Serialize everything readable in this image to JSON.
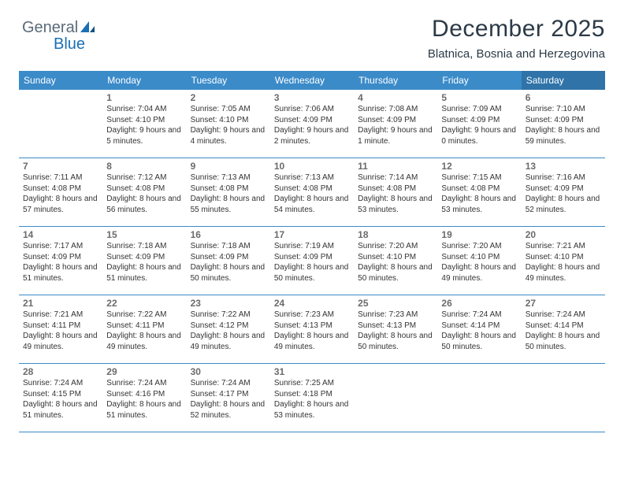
{
  "logo": {
    "text1": "General",
    "text2": "Blue"
  },
  "title": "December 2025",
  "subtitle": "Blatnica, Bosnia and Herzegovina",
  "colors": {
    "header_bg": "#3b8bc9",
    "header_sat_bg": "#2f73a8",
    "week_divider": "#3b8bc9",
    "daynum_color": "#6b6b6b",
    "text_color": "#333333"
  },
  "headers": [
    "Sunday",
    "Monday",
    "Tuesday",
    "Wednesday",
    "Thursday",
    "Friday",
    "Saturday"
  ],
  "weeks": [
    [
      {
        "n": "",
        "r": "",
        "s": "",
        "d": ""
      },
      {
        "n": "1",
        "r": "Sunrise: 7:04 AM",
        "s": "Sunset: 4:10 PM",
        "d": "Daylight: 9 hours and 5 minutes."
      },
      {
        "n": "2",
        "r": "Sunrise: 7:05 AM",
        "s": "Sunset: 4:10 PM",
        "d": "Daylight: 9 hours and 4 minutes."
      },
      {
        "n": "3",
        "r": "Sunrise: 7:06 AM",
        "s": "Sunset: 4:09 PM",
        "d": "Daylight: 9 hours and 2 minutes."
      },
      {
        "n": "4",
        "r": "Sunrise: 7:08 AM",
        "s": "Sunset: 4:09 PM",
        "d": "Daylight: 9 hours and 1 minute."
      },
      {
        "n": "5",
        "r": "Sunrise: 7:09 AM",
        "s": "Sunset: 4:09 PM",
        "d": "Daylight: 9 hours and 0 minutes."
      },
      {
        "n": "6",
        "r": "Sunrise: 7:10 AM",
        "s": "Sunset: 4:09 PM",
        "d": "Daylight: 8 hours and 59 minutes."
      }
    ],
    [
      {
        "n": "7",
        "r": "Sunrise: 7:11 AM",
        "s": "Sunset: 4:08 PM",
        "d": "Daylight: 8 hours and 57 minutes."
      },
      {
        "n": "8",
        "r": "Sunrise: 7:12 AM",
        "s": "Sunset: 4:08 PM",
        "d": "Daylight: 8 hours and 56 minutes."
      },
      {
        "n": "9",
        "r": "Sunrise: 7:13 AM",
        "s": "Sunset: 4:08 PM",
        "d": "Daylight: 8 hours and 55 minutes."
      },
      {
        "n": "10",
        "r": "Sunrise: 7:13 AM",
        "s": "Sunset: 4:08 PM",
        "d": "Daylight: 8 hours and 54 minutes."
      },
      {
        "n": "11",
        "r": "Sunrise: 7:14 AM",
        "s": "Sunset: 4:08 PM",
        "d": "Daylight: 8 hours and 53 minutes."
      },
      {
        "n": "12",
        "r": "Sunrise: 7:15 AM",
        "s": "Sunset: 4:08 PM",
        "d": "Daylight: 8 hours and 53 minutes."
      },
      {
        "n": "13",
        "r": "Sunrise: 7:16 AM",
        "s": "Sunset: 4:09 PM",
        "d": "Daylight: 8 hours and 52 minutes."
      }
    ],
    [
      {
        "n": "14",
        "r": "Sunrise: 7:17 AM",
        "s": "Sunset: 4:09 PM",
        "d": "Daylight: 8 hours and 51 minutes."
      },
      {
        "n": "15",
        "r": "Sunrise: 7:18 AM",
        "s": "Sunset: 4:09 PM",
        "d": "Daylight: 8 hours and 51 minutes."
      },
      {
        "n": "16",
        "r": "Sunrise: 7:18 AM",
        "s": "Sunset: 4:09 PM",
        "d": "Daylight: 8 hours and 50 minutes."
      },
      {
        "n": "17",
        "r": "Sunrise: 7:19 AM",
        "s": "Sunset: 4:09 PM",
        "d": "Daylight: 8 hours and 50 minutes."
      },
      {
        "n": "18",
        "r": "Sunrise: 7:20 AM",
        "s": "Sunset: 4:10 PM",
        "d": "Daylight: 8 hours and 50 minutes."
      },
      {
        "n": "19",
        "r": "Sunrise: 7:20 AM",
        "s": "Sunset: 4:10 PM",
        "d": "Daylight: 8 hours and 49 minutes."
      },
      {
        "n": "20",
        "r": "Sunrise: 7:21 AM",
        "s": "Sunset: 4:10 PM",
        "d": "Daylight: 8 hours and 49 minutes."
      }
    ],
    [
      {
        "n": "21",
        "r": "Sunrise: 7:21 AM",
        "s": "Sunset: 4:11 PM",
        "d": "Daylight: 8 hours and 49 minutes."
      },
      {
        "n": "22",
        "r": "Sunrise: 7:22 AM",
        "s": "Sunset: 4:11 PM",
        "d": "Daylight: 8 hours and 49 minutes."
      },
      {
        "n": "23",
        "r": "Sunrise: 7:22 AM",
        "s": "Sunset: 4:12 PM",
        "d": "Daylight: 8 hours and 49 minutes."
      },
      {
        "n": "24",
        "r": "Sunrise: 7:23 AM",
        "s": "Sunset: 4:13 PM",
        "d": "Daylight: 8 hours and 49 minutes."
      },
      {
        "n": "25",
        "r": "Sunrise: 7:23 AM",
        "s": "Sunset: 4:13 PM",
        "d": "Daylight: 8 hours and 50 minutes."
      },
      {
        "n": "26",
        "r": "Sunrise: 7:24 AM",
        "s": "Sunset: 4:14 PM",
        "d": "Daylight: 8 hours and 50 minutes."
      },
      {
        "n": "27",
        "r": "Sunrise: 7:24 AM",
        "s": "Sunset: 4:14 PM",
        "d": "Daylight: 8 hours and 50 minutes."
      }
    ],
    [
      {
        "n": "28",
        "r": "Sunrise: 7:24 AM",
        "s": "Sunset: 4:15 PM",
        "d": "Daylight: 8 hours and 51 minutes."
      },
      {
        "n": "29",
        "r": "Sunrise: 7:24 AM",
        "s": "Sunset: 4:16 PM",
        "d": "Daylight: 8 hours and 51 minutes."
      },
      {
        "n": "30",
        "r": "Sunrise: 7:24 AM",
        "s": "Sunset: 4:17 PM",
        "d": "Daylight: 8 hours and 52 minutes."
      },
      {
        "n": "31",
        "r": "Sunrise: 7:25 AM",
        "s": "Sunset: 4:18 PM",
        "d": "Daylight: 8 hours and 53 minutes."
      },
      {
        "n": "",
        "r": "",
        "s": "",
        "d": ""
      },
      {
        "n": "",
        "r": "",
        "s": "",
        "d": ""
      },
      {
        "n": "",
        "r": "",
        "s": "",
        "d": ""
      }
    ]
  ]
}
